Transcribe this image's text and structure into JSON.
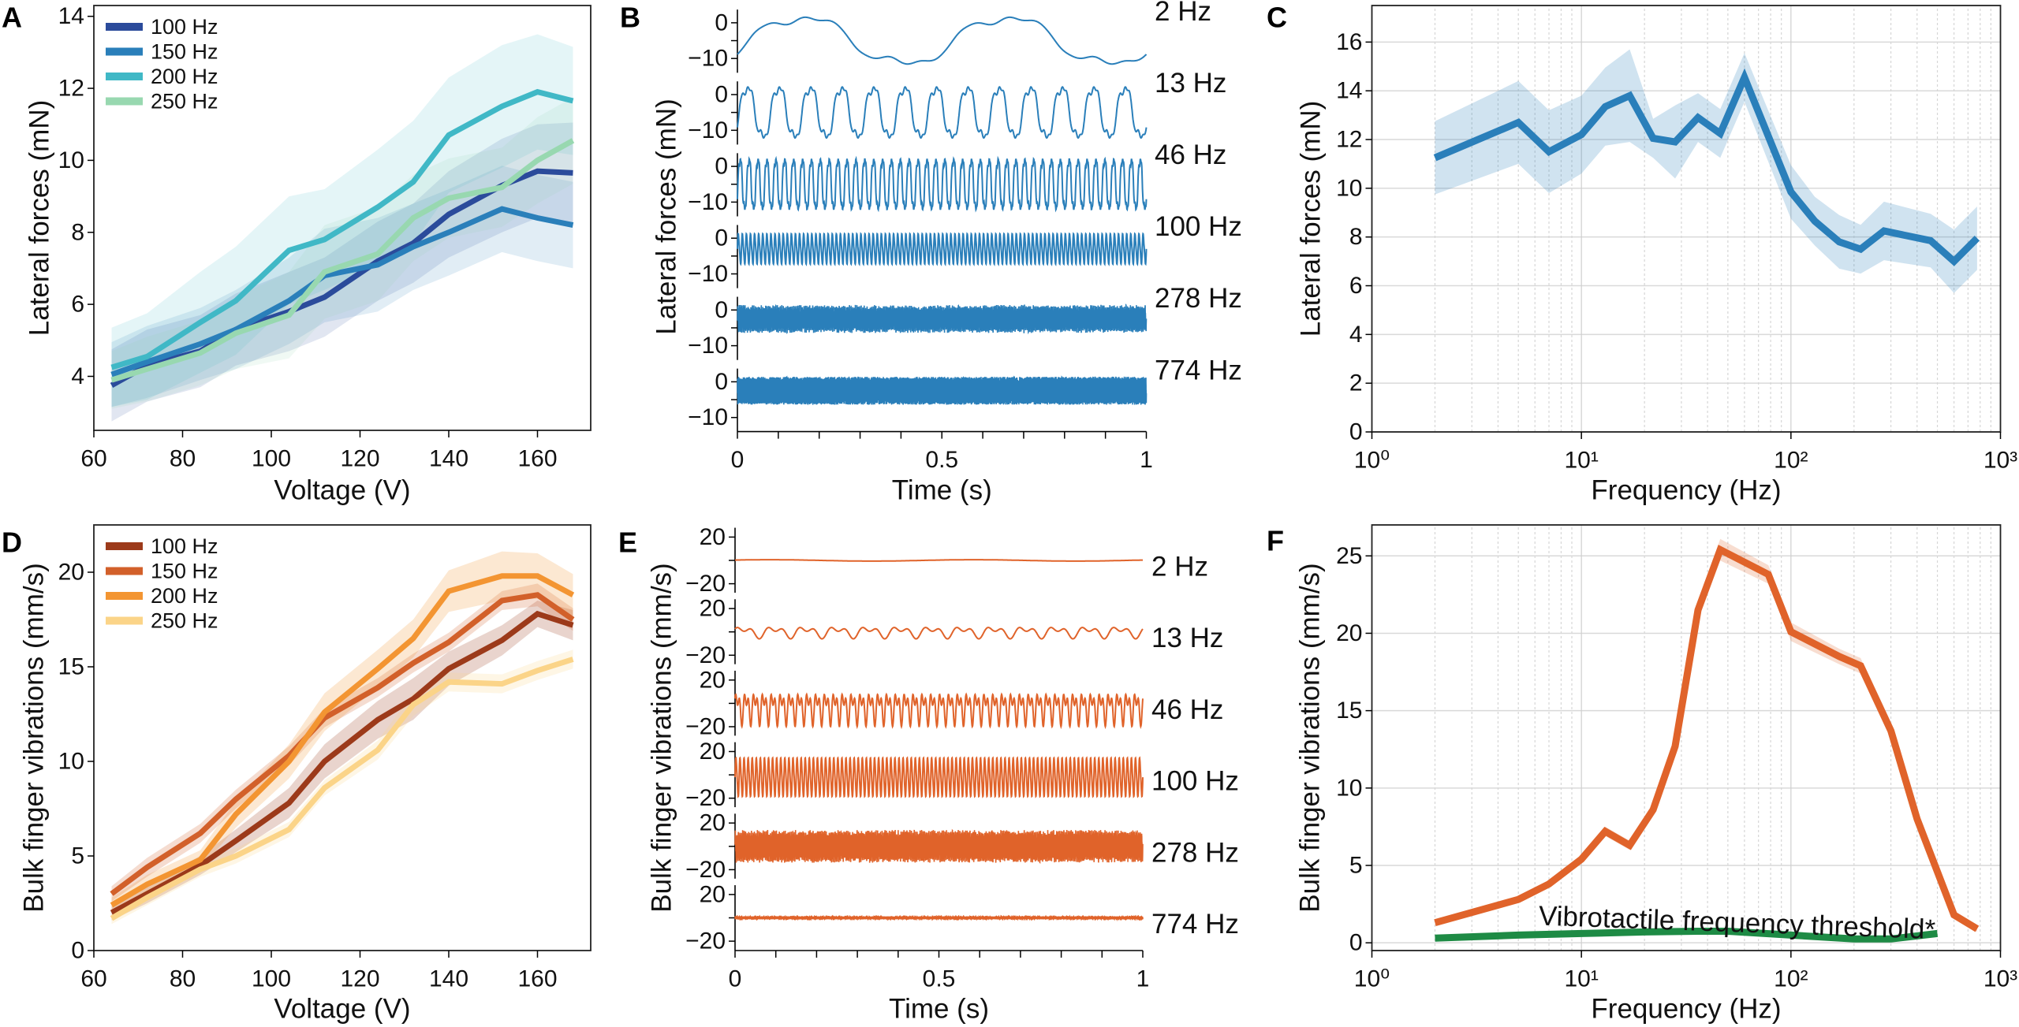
{
  "colors": {
    "blue_100": "#2b4b9b",
    "blue_150": "#2a7fba",
    "blue_200": "#40b8c6",
    "blue_250": "#98d8b0",
    "orange_100": "#9c3a1a",
    "orange_150": "#d2602a",
    "orange_200": "#f39532",
    "orange_250": "#fbd488",
    "force_line": "#2a7fba",
    "vibration_line": "#e0632a",
    "threshold": "#1e8b45"
  },
  "chart_data": [
    {
      "panel": "A",
      "type": "line",
      "xlabel": "Voltage (V)",
      "ylabel": "Lateral forces (mN)",
      "xlim": [
        60,
        172
      ],
      "ylim": [
        2.5,
        14.3
      ],
      "xscale": "linear",
      "grid": false,
      "legend": "top-left",
      "xticks": [
        60,
        80,
        100,
        120,
        140,
        160
      ],
      "xticklabels": [
        "60",
        "80",
        "100",
        "120",
        "140",
        "160"
      ],
      "yticks": [
        4,
        6,
        8,
        10,
        12,
        14
      ],
      "yticklabels": [
        "4",
        "6",
        "8",
        "10",
        "12",
        "14"
      ],
      "x": [
        64,
        72,
        84,
        92,
        104,
        112,
        124,
        132,
        140,
        152,
        160,
        168
      ],
      "series": [
        {
          "name": "100 Hz",
          "color": "#2b4b9b",
          "y": [
            3.75,
            4.3,
            4.7,
            5.3,
            5.8,
            6.2,
            7.2,
            7.7,
            8.5,
            9.3,
            9.7,
            9.65
          ],
          "band": [
            1,
            1,
            1,
            1,
            1.1,
            1.1,
            1.1,
            1.1,
            1.2,
            1.3,
            1.3,
            1.4
          ]
        },
        {
          "name": "150 Hz",
          "color": "#2a7fba",
          "y": [
            4.05,
            4.4,
            4.9,
            5.3,
            6.1,
            6.8,
            7.1,
            7.6,
            8.0,
            8.65,
            8.4,
            8.2
          ],
          "band": [
            0.9,
            1,
            1,
            1.1,
            1.2,
            1.3,
            1.3,
            1.2,
            1.2,
            1.2,
            1.2,
            1.2
          ]
        },
        {
          "name": "200 Hz",
          "color": "#40b8c6",
          "y": [
            4.25,
            4.55,
            5.5,
            6.1,
            7.5,
            7.8,
            8.7,
            9.4,
            10.7,
            11.5,
            11.9,
            11.65
          ],
          "band": [
            1.1,
            1.2,
            1.4,
            1.5,
            1.5,
            1.4,
            1.6,
            1.7,
            1.6,
            1.7,
            1.6,
            1.5
          ]
        },
        {
          "name": "250 Hz",
          "color": "#98d8b0",
          "y": [
            3.9,
            4.2,
            4.65,
            5.2,
            5.7,
            6.9,
            7.4,
            8.4,
            8.95,
            9.25,
            10.0,
            10.55
          ],
          "band": [
            0.8,
            0.9,
            0.9,
            1,
            1.2,
            1.3,
            1.3,
            1.2,
            1.1,
            1.1,
            1.2,
            1.2
          ]
        }
      ]
    },
    {
      "panel": "B",
      "type": "line",
      "xlabel": "Time (s)",
      "ylabel": "Lateral forces (mN)",
      "xlim": [
        0,
        1
      ],
      "row_ylim": [
        -14,
        3.7
      ],
      "color": "#2a7fba",
      "xticks": [
        0,
        0.5,
        1
      ],
      "xticklabels": [
        "0",
        "0.5",
        "1"
      ],
      "yticks": [
        0,
        -10
      ],
      "yticklabels": [
        "0",
        "−10"
      ],
      "traces": [
        {
          "label": "2 Hz",
          "frequency": 2,
          "offset": -5,
          "amplitude": 5.5
        },
        {
          "label": "13 Hz",
          "frequency": 13,
          "offset": -5,
          "amplitude": 6
        },
        {
          "label": "46 Hz",
          "frequency": 46,
          "offset": -5,
          "amplitude": 6
        },
        {
          "label": "100 Hz",
          "frequency": 100,
          "offset": -3,
          "amplitude": 4
        },
        {
          "label": "278 Hz",
          "frequency": 278,
          "offset": -2.5,
          "amplitude": 3
        },
        {
          "label": "774 Hz",
          "frequency": 774,
          "offset": -2.5,
          "amplitude": 3
        }
      ]
    },
    {
      "panel": "C",
      "type": "line",
      "xlabel": "Frequency (Hz)",
      "ylabel": "Lateral forces (mN)",
      "xlim": [
        1,
        1000
      ],
      "ylim": [
        0,
        17.5
      ],
      "xscale": "log",
      "grid": true,
      "xticks": [
        1,
        10,
        100,
        1000
      ],
      "xticklabels": [
        "10⁰",
        "10¹",
        "10²",
        "10³"
      ],
      "yticks": [
        0,
        2,
        4,
        6,
        8,
        10,
        12,
        14,
        16
      ],
      "yticklabels": [
        "0",
        "2",
        "4",
        "6",
        "8",
        "10",
        "12",
        "14",
        "16"
      ],
      "x": [
        2,
        5,
        7,
        10,
        13,
        17,
        22,
        28,
        36,
        46,
        60,
        100,
        130,
        170,
        215,
        278,
        464,
        600,
        774
      ],
      "series": [
        {
          "color": "#2a7fba",
          "y": [
            11.25,
            12.7,
            11.5,
            12.2,
            13.35,
            13.8,
            12.05,
            11.9,
            12.9,
            12.25,
            14.55,
            9.85,
            8.65,
            7.8,
            7.5,
            8.25,
            7.85,
            7.0,
            7.95
          ],
          "band": [
            1.5,
            1.7,
            1.7,
            1.6,
            1.6,
            1.9,
            0.8,
            1.5,
            1,
            1,
            1,
            1.1,
            1,
            1.1,
            1,
            1.2,
            1.1,
            1.3,
            1.3
          ]
        }
      ]
    },
    {
      "panel": "D",
      "type": "line",
      "xlabel": "Voltage (V)",
      "ylabel": "Bulk finger vibrations (mm/s)",
      "xlim": [
        60,
        172
      ],
      "ylim": [
        0,
        22.5
      ],
      "xscale": "linear",
      "grid": false,
      "legend": "top-left",
      "xticks": [
        60,
        80,
        100,
        120,
        140,
        160
      ],
      "xticklabels": [
        "60",
        "80",
        "100",
        "120",
        "140",
        "160"
      ],
      "yticks": [
        0,
        5,
        10,
        15,
        20
      ],
      "yticklabels": [
        "0",
        "5",
        "10",
        "15",
        "20"
      ],
      "x": [
        64,
        72,
        84,
        92,
        104,
        112,
        124,
        132,
        140,
        152,
        160,
        168
      ],
      "series": [
        {
          "name": "100 Hz",
          "color": "#9c3a1a",
          "y": [
            2.0,
            3.0,
            4.5,
            5.8,
            7.8,
            10.0,
            12.2,
            13.3,
            14.9,
            16.4,
            17.8,
            17.2
          ],
          "band": [
            0.4,
            0.5,
            0.5,
            0.6,
            0.8,
            0.9,
            1,
            1.1,
            0.9,
            0.8,
            0.7,
            0.8
          ]
        },
        {
          "name": "150 Hz",
          "color": "#d2602a",
          "y": [
            3.0,
            4.4,
            6.2,
            8.0,
            10.3,
            12.3,
            13.9,
            15.2,
            16.3,
            18.5,
            18.8,
            17.5
          ],
          "band": [
            0.4,
            0.5,
            0.5,
            0.5,
            0.5,
            0.5,
            0.5,
            0.5,
            0.5,
            0.5,
            0.6,
            0.6
          ]
        },
        {
          "name": "200 Hz",
          "color": "#f39532",
          "y": [
            2.4,
            3.5,
            4.8,
            7.2,
            10.0,
            12.6,
            14.9,
            16.5,
            19.0,
            19.8,
            19.8,
            18.8
          ],
          "band": [
            0.4,
            0.5,
            0.5,
            0.7,
            0.9,
            1,
            1,
            1,
            1.1,
            1.3,
            1.2,
            1.1
          ]
        },
        {
          "name": "250 Hz",
          "color": "#fbd488",
          "y": [
            1.7,
            2.8,
            4.3,
            5.0,
            6.4,
            8.6,
            10.6,
            13.0,
            14.2,
            14.1,
            14.8,
            15.4
          ],
          "band": [
            0.3,
            0.4,
            0.4,
            0.4,
            0.4,
            0.4,
            0.5,
            0.6,
            0.5,
            0.5,
            0.5,
            0.5
          ]
        }
      ]
    },
    {
      "panel": "E",
      "type": "line",
      "xlabel": "Time (s)",
      "ylabel": "Bulk finger vibrations (mm/s)",
      "xlim": [
        0,
        1
      ],
      "row_ylim": [
        -27.7,
        28
      ],
      "color": "#e0632a",
      "xticks": [
        0,
        0.5,
        1
      ],
      "xticklabels": [
        "0",
        "0.5",
        "1"
      ],
      "yticks": [
        20,
        0,
        -20
      ],
      "yticklabels": [
        "20",
        "",
        "−20"
      ],
      "traces": [
        {
          "label": "2 Hz",
          "frequency": 2,
          "offset": 0,
          "amplitude": 1
        },
        {
          "label": "13 Hz",
          "frequency": 13,
          "offset": 0,
          "amplitude": 6
        },
        {
          "label": "46 Hz",
          "frequency": 46,
          "offset": -3,
          "amplitude": 17
        },
        {
          "label": "100 Hz",
          "frequency": 100,
          "offset": -2,
          "amplitude": 16
        },
        {
          "label": "278 Hz",
          "frequency": 278,
          "offset": 0,
          "amplitude": 11
        },
        {
          "label": "774 Hz",
          "frequency": 774,
          "offset": 0,
          "amplitude": 1
        }
      ]
    },
    {
      "panel": "F",
      "type": "line",
      "xlabel": "Frequency (Hz)",
      "ylabel": "Bulk finger vibrations (mm/s)",
      "xlim": [
        1,
        1000
      ],
      "ylim": [
        -0.5,
        27
      ],
      "xscale": "log",
      "grid": true,
      "xticks": [
        1,
        10,
        100,
        1000
      ],
      "xticklabels": [
        "10⁰",
        "10¹",
        "10²",
        "10³"
      ],
      "yticks": [
        0,
        5,
        10,
        15,
        20,
        25
      ],
      "yticklabels": [
        "0",
        "5",
        "10",
        "15",
        "20",
        "25"
      ],
      "x": [
        2,
        5,
        7,
        10,
        13,
        17,
        22,
        28,
        36,
        46,
        78,
        100,
        170,
        215,
        300,
        400,
        600,
        774
      ],
      "series": [
        {
          "color": "#e0632a",
          "y": [
            1.3,
            2.8,
            3.8,
            5.4,
            7.2,
            6.3,
            8.6,
            12.7,
            21.5,
            25.4,
            23.8,
            20.1,
            18.5,
            17.9,
            13.7,
            8.0,
            1.8,
            0.9
          ],
          "band": [
            0.2,
            0.2,
            0.2,
            0.2,
            0.3,
            0.3,
            0.3,
            0.4,
            0.6,
            0.7,
            0.6,
            0.6,
            0.5,
            0.5,
            0.3,
            0.3,
            0.2,
            0.2
          ]
        },
        {
          "name": "Vibrotactile frequency threshold*",
          "color": "#1e8b45",
          "x": [
            2,
            5,
            10,
            20,
            36,
            50,
            100,
            200,
            300,
            500
          ],
          "y": [
            0.3,
            0.5,
            0.6,
            0.7,
            0.75,
            0.75,
            0.5,
            0.25,
            0.25,
            0.6
          ]
        }
      ],
      "annotation": "Vibrotactile frequency threshold*"
    }
  ]
}
